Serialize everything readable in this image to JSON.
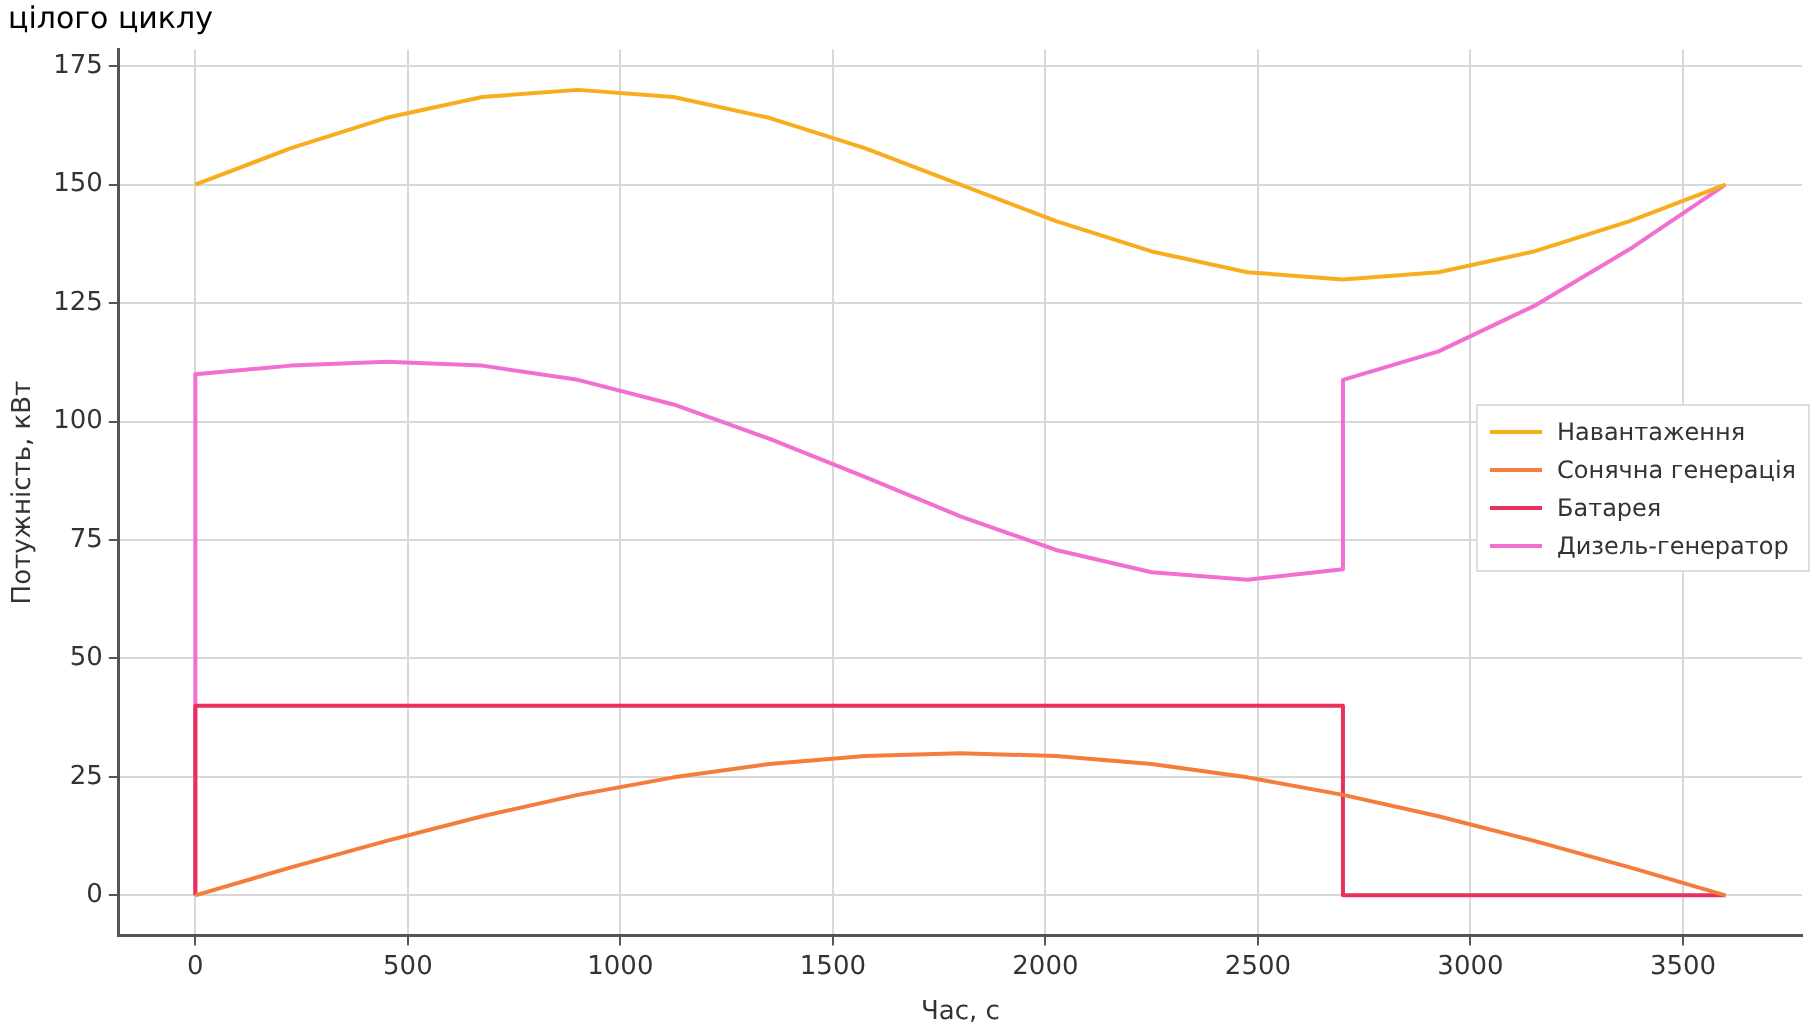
{
  "chart_data": {
    "type": "line",
    "title": "цілого циклу",
    "xlabel": "Час, с",
    "ylabel": "Потужність, кВт",
    "xlim": [
      -180,
      3780
    ],
    "ylim": [
      -8.5,
      178.5
    ],
    "xticks": [
      0,
      500,
      1000,
      1500,
      2000,
      2500,
      3000,
      3500
    ],
    "yticks": [
      0,
      25,
      50,
      75,
      100,
      125,
      150,
      175
    ],
    "grid": true,
    "legend": "right",
    "line_style": "solid",
    "marker": "none",
    "series": [
      {
        "name": "Навантаження",
        "color": "#f8ad1e",
        "x": [
          0,
          225,
          450,
          675,
          900,
          1125,
          1350,
          1575,
          1800,
          2025,
          2250,
          2475,
          2700,
          2925,
          3150,
          3375,
          3600
        ],
        "values": [
          150,
          157.7,
          164.1,
          168.5,
          170,
          168.5,
          164.1,
          157.7,
          150,
          142.3,
          135.9,
          131.5,
          130,
          131.5,
          135.9,
          142.3,
          150
        ]
      },
      {
        "name": "Сонячна генерація",
        "color": "#f47c3c",
        "x": [
          0,
          225,
          450,
          675,
          900,
          1125,
          1350,
          1575,
          1800,
          2025,
          2250,
          2475,
          2700,
          2925,
          3150,
          3375,
          3600
        ],
        "values": [
          0,
          5.9,
          11.5,
          16.7,
          21.2,
          24.9,
          27.7,
          29.4,
          30,
          29.4,
          27.7,
          24.9,
          21.2,
          16.7,
          11.5,
          5.9,
          0
        ]
      },
      {
        "name": "Батарея",
        "color": "#e8305a",
        "x": [
          0,
          0,
          2700,
          2700,
          3600
        ],
        "values": [
          0,
          40,
          40,
          0,
          0
        ]
      },
      {
        "name": "Дизель-генератор",
        "color": "#f26ed0",
        "x": [
          0,
          0,
          225,
          450,
          675,
          900,
          1125,
          1350,
          1575,
          1800,
          2025,
          2250,
          2475,
          2700,
          2700,
          2925,
          3150,
          3375,
          3600
        ],
        "values": [
          0,
          110,
          111.8,
          112.6,
          111.8,
          108.8,
          103.6,
          96.4,
          88.3,
          80,
          72.9,
          68.2,
          66.6,
          68.8,
          108.8,
          114.8,
          124.4,
          136.4,
          150
        ]
      }
    ]
  }
}
